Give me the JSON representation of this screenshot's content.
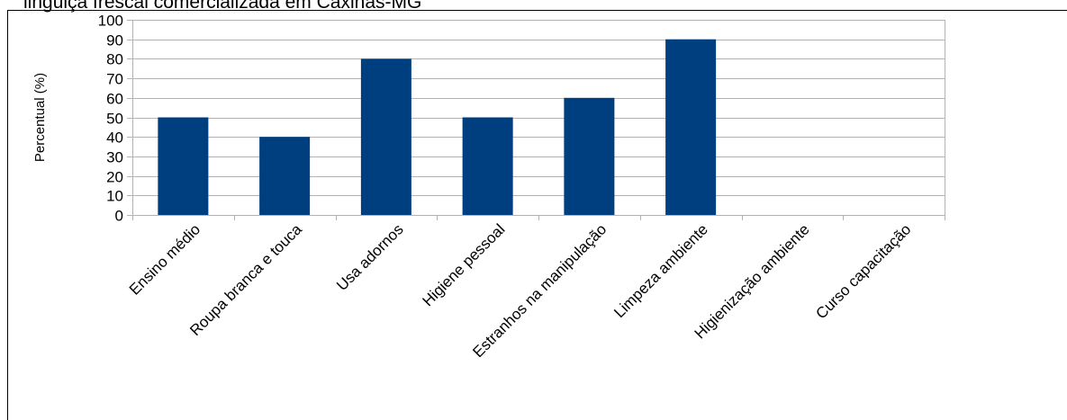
{
  "caption": "linguiça frescal comercializada em Caxinas-MG",
  "chart_data": {
    "type": "bar",
    "title": "",
    "xlabel": "",
    "ylabel": "Percentual (%)",
    "ylim": [
      0,
      100
    ],
    "yticks": [
      0,
      10,
      20,
      30,
      40,
      50,
      60,
      70,
      80,
      90,
      100
    ],
    "grid": true,
    "legend": "none",
    "bar_color": "#003f7f",
    "categories": [
      "Ensino médio",
      "Roupa branca e touca",
      "Usa adornos",
      "Higiene pessoal",
      "Estranhos na manipulação",
      "Limpeza ambiente",
      "Higienização ambiente",
      "Curso capacitação"
    ],
    "values": [
      50,
      40,
      80,
      50,
      60,
      90,
      0,
      0
    ]
  }
}
